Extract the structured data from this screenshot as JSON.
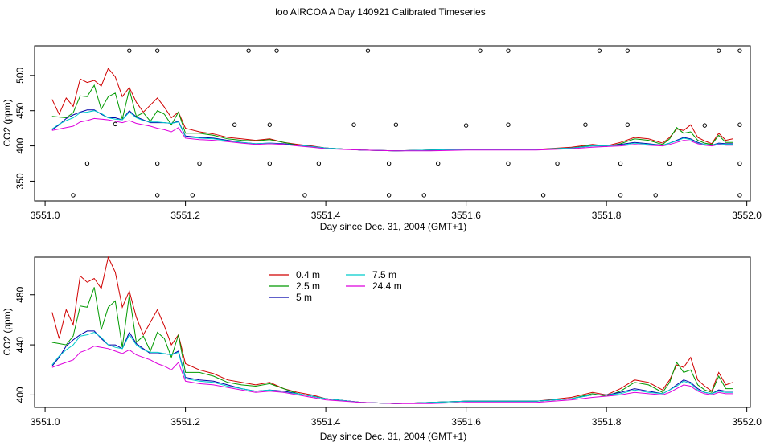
{
  "title": "loo AIRCOA A  Day 140921  Calibrated Timeseries",
  "chart_data": [
    {
      "type": "line",
      "xlabel": "Day since Dec. 31, 2004 (GMT+1)",
      "ylabel": "CO2 (ppm)",
      "xlim": [
        3550.985,
        3552.005
      ],
      "ylim": [
        322,
        542
      ],
      "x_ticks": [
        3551.0,
        3551.2,
        3551.4,
        3551.6,
        3551.8,
        3552.0
      ],
      "y_ticks": [
        350,
        400,
        450,
        500
      ],
      "x": [
        3551.01,
        3551.02,
        3551.03,
        3551.04,
        3551.05,
        3551.06,
        3551.07,
        3551.08,
        3551.09,
        3551.1,
        3551.11,
        3551.12,
        3551.13,
        3551.14,
        3551.15,
        3551.16,
        3551.17,
        3551.18,
        3551.19,
        3551.2,
        3551.22,
        3551.24,
        3551.26,
        3551.28,
        3551.3,
        3551.32,
        3551.34,
        3551.36,
        3551.38,
        3551.4,
        3551.45,
        3551.5,
        3551.55,
        3551.6,
        3551.65,
        3551.7,
        3551.75,
        3551.78,
        3551.8,
        3551.82,
        3551.84,
        3551.86,
        3551.88,
        3551.89,
        3551.9,
        3551.91,
        3551.92,
        3551.93,
        3551.94,
        3551.95,
        3551.96,
        3551.97,
        3551.98
      ],
      "series": [
        {
          "name": "0.4 m",
          "color": "#d00000",
          "values": [
            466,
            445,
            468,
            456,
            495,
            490,
            493,
            485,
            510,
            498,
            470,
            483,
            462,
            448,
            458,
            468,
            455,
            440,
            448,
            425,
            420,
            417,
            412,
            410,
            408,
            410,
            405,
            402,
            400,
            397,
            394,
            393,
            394,
            395,
            395,
            395,
            398,
            402,
            400,
            405,
            412,
            410,
            404,
            412,
            424,
            422,
            430,
            412,
            407,
            403,
            418,
            408,
            410
          ]
        },
        {
          "name": "2.5 m",
          "color": "#009900",
          "values": [
            442,
            441,
            440,
            447,
            471,
            470,
            486,
            452,
            470,
            475,
            438,
            480,
            442,
            447,
            435,
            450,
            445,
            430,
            448,
            418,
            418,
            415,
            410,
            408,
            407,
            409,
            405,
            401,
            399,
            397,
            394,
            393,
            394,
            395,
            395,
            395,
            397,
            401,
            399,
            403,
            410,
            408,
            402,
            410,
            426,
            418,
            420,
            408,
            404,
            402,
            415,
            405,
            405
          ]
        },
        {
          "name": "5 m",
          "color": "#0000aa",
          "values": [
            423,
            430,
            439,
            444,
            448,
            451,
            451,
            445,
            440,
            440,
            437,
            450,
            441,
            437,
            433,
            433,
            433,
            432,
            435,
            414,
            412,
            411,
            408,
            405,
            403,
            404,
            403,
            401,
            399,
            397,
            394,
            393,
            394,
            395,
            395,
            395,
            397,
            400,
            400,
            402,
            405,
            403,
            401,
            404,
            408,
            412,
            410,
            405,
            402,
            401,
            404,
            403,
            403
          ]
        },
        {
          "name": "7.5 m",
          "color": "#00cccc",
          "values": [
            424,
            431,
            436,
            440,
            447,
            448,
            450,
            446,
            440,
            438,
            437,
            448,
            440,
            436,
            434,
            434,
            433,
            432,
            434,
            413,
            411,
            410,
            407,
            405,
            403,
            404,
            402,
            401,
            399,
            397,
            394,
            393,
            394,
            395,
            395,
            395,
            397,
            400,
            400,
            401,
            404,
            402,
            401,
            404,
            407,
            411,
            409,
            404,
            402,
            401,
            403,
            402,
            402
          ]
        },
        {
          "name": "24.4 m",
          "color": "#dd00dd",
          "values": [
            422,
            424,
            426,
            428,
            434,
            436,
            439,
            438,
            437,
            435,
            433,
            436,
            432,
            430,
            428,
            425,
            423,
            420,
            426,
            411,
            409,
            408,
            406,
            404,
            402,
            403,
            402,
            400,
            398,
            396,
            394,
            393,
            393,
            394,
            394,
            394,
            396,
            398,
            399,
            400,
            402,
            401,
            400,
            402,
            405,
            408,
            407,
            403,
            401,
            400,
            402,
            401,
            401
          ]
        }
      ],
      "points": {
        "type": "scatter",
        "marker": "open-circle",
        "x": [
          3551.04,
          3551.06,
          3551.1,
          3551.12,
          3551.16,
          3551.16,
          3551.16,
          3551.21,
          3551.22,
          3551.27,
          3551.29,
          3551.32,
          3551.32,
          3551.33,
          3551.37,
          3551.39,
          3551.44,
          3551.46,
          3551.49,
          3551.49,
          3551.5,
          3551.54,
          3551.56,
          3551.6,
          3551.62,
          3551.66,
          3551.66,
          3551.66,
          3551.71,
          3551.73,
          3551.77,
          3551.79,
          3551.82,
          3551.82,
          3551.83,
          3551.83,
          3551.87,
          3551.89,
          3551.94,
          3551.96,
          3551.99,
          3551.99,
          3551.99,
          3551.99
        ],
        "y": [
          330,
          375,
          431,
          535,
          330,
          375,
          535,
          330,
          375,
          430,
          535,
          430,
          375,
          535,
          330,
          375,
          430,
          535,
          330,
          375,
          430,
          330,
          375,
          429,
          535,
          430,
          375,
          535,
          330,
          375,
          430,
          535,
          330,
          375,
          430,
          535,
          330,
          375,
          429,
          535,
          430,
          375,
          535,
          330
        ]
      }
    },
    {
      "type": "line",
      "xlabel": "Day since Dec. 31, 2004 (GMT+1)",
      "ylabel": "CO2 (ppm)",
      "xlim": [
        3550.985,
        3552.005
      ],
      "ylim": [
        390,
        510
      ],
      "x_ticks": [
        3551.0,
        3551.2,
        3551.4,
        3551.6,
        3551.8,
        3552.0
      ],
      "y_ticks": [
        400,
        440,
        480
      ],
      "legend": {
        "placement": "top-left",
        "entries": [
          {
            "label": "0.4 m",
            "color": "#d00000"
          },
          {
            "label": "2.5 m",
            "color": "#009900"
          },
          {
            "label": "5 m",
            "color": "#0000aa"
          },
          {
            "label": "7.5 m",
            "color": "#00cccc"
          },
          {
            "label": "24.4 m",
            "color": "#dd00dd"
          }
        ]
      },
      "same_series_as_panel": 0
    }
  ]
}
